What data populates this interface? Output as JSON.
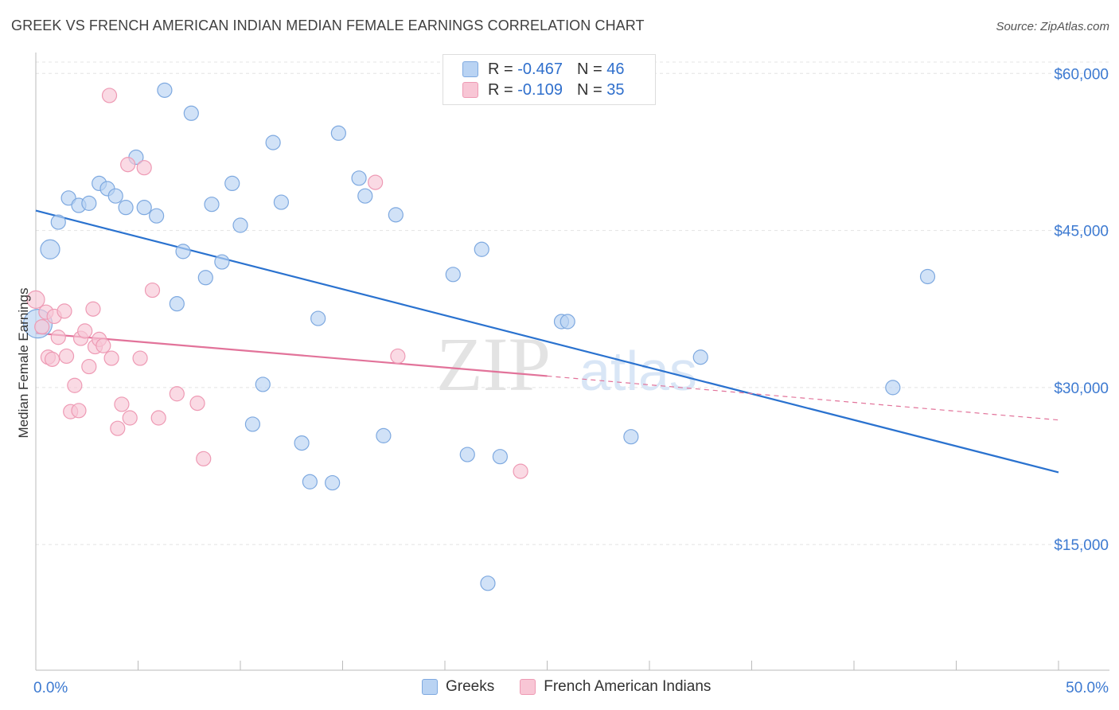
{
  "title": "GREEK VS FRENCH AMERICAN INDIAN MEDIAN FEMALE EARNINGS CORRELATION CHART",
  "source": "Source: ZipAtlas.com",
  "watermark": {
    "zip": "ZIP",
    "atlas": "atlas"
  },
  "legend_top": {
    "rows": [
      {
        "r_label": "R =",
        "r_value": "-0.467",
        "n_label": "N =",
        "n_value": "46"
      },
      {
        "r_label": "R =",
        "r_value": "-0.109",
        "n_label": "N =",
        "n_value": "35"
      }
    ]
  },
  "colors": {
    "greek_fill": "#b9d3f3",
    "greek_stroke": "#7ea9e0",
    "greek_line": "#2a72cf",
    "french_fill": "#f8c6d5",
    "french_stroke": "#ee9ab4",
    "french_line": "#e2739a",
    "axis_label": "#3d7ad1"
  },
  "chart_data": {
    "type": "scatter",
    "title": "GREEK VS FRENCH AMERICAN INDIAN MEDIAN FEMALE EARNINGS CORRELATION CHART",
    "xlabel": "",
    "ylabel": "Median Female Earnings",
    "xlim": [
      0,
      50
    ],
    "ylim": [
      3000,
      62000
    ],
    "x_tick_labels": [
      "0.0%",
      "50.0%"
    ],
    "y_ticks": [
      {
        "value": 60000,
        "label": "$60,000"
      },
      {
        "value": 45000,
        "label": "$45,000"
      },
      {
        "value": 30000,
        "label": "$30,000"
      },
      {
        "value": 15000,
        "label": "$15,000"
      }
    ],
    "legend": [
      "Greeks",
      "French American Indians"
    ],
    "series": [
      {
        "name": "Greeks",
        "r": -0.467,
        "n": 46,
        "trend": {
          "x0": 0,
          "y0": 46900,
          "x1": 50,
          "y1": 21900
        },
        "points": [
          [
            0.1,
            36100,
            18
          ],
          [
            0.7,
            43200,
            12
          ],
          [
            1.1,
            45800,
            9
          ],
          [
            1.6,
            48100,
            9
          ],
          [
            2.1,
            47400,
            9
          ],
          [
            2.6,
            47600,
            9
          ],
          [
            3.1,
            49500,
            9
          ],
          [
            3.5,
            49000,
            9
          ],
          [
            3.9,
            48300,
            9
          ],
          [
            4.4,
            47200,
            9
          ],
          [
            4.9,
            52000,
            9
          ],
          [
            5.3,
            47200,
            9
          ],
          [
            5.9,
            46400,
            9
          ],
          [
            6.3,
            58400,
            9
          ],
          [
            6.9,
            38000,
            9
          ],
          [
            7.2,
            43000,
            9
          ],
          [
            7.6,
            56200,
            9
          ],
          [
            8.3,
            40500,
            9
          ],
          [
            8.6,
            47500,
            9
          ],
          [
            9.1,
            42000,
            9
          ],
          [
            9.6,
            49500,
            9
          ],
          [
            10.0,
            45500,
            9
          ],
          [
            10.6,
            26500,
            9
          ],
          [
            11.1,
            30300,
            9
          ],
          [
            11.6,
            53400,
            9
          ],
          [
            12.0,
            47700,
            9
          ],
          [
            13.0,
            24700,
            9
          ],
          [
            13.4,
            21000,
            9
          ],
          [
            13.8,
            36600,
            9
          ],
          [
            14.5,
            20900,
            9
          ],
          [
            14.8,
            54300,
            9
          ],
          [
            15.8,
            50000,
            9
          ],
          [
            16.1,
            48300,
            9
          ],
          [
            17.0,
            25400,
            9
          ],
          [
            17.6,
            46500,
            9
          ],
          [
            20.4,
            40800,
            9
          ],
          [
            21.1,
            23600,
            9
          ],
          [
            21.8,
            43200,
            9
          ],
          [
            22.1,
            11300,
            9
          ],
          [
            22.7,
            23400,
            9
          ],
          [
            25.7,
            36300,
            9
          ],
          [
            26.0,
            36300,
            9
          ],
          [
            29.1,
            25300,
            9
          ],
          [
            32.5,
            32900,
            9
          ],
          [
            43.6,
            40600,
            9
          ],
          [
            41.9,
            30000,
            9
          ]
        ]
      },
      {
        "name": "French American Indians",
        "r": -0.109,
        "n": 35,
        "trend": {
          "x0": 0,
          "y0": 35200,
          "x1": 25,
          "y1": 31100,
          "x_dash_end": 50,
          "y_dash_end": 26900
        },
        "points": [
          [
            0.0,
            38400,
            11
          ],
          [
            0.5,
            37200,
            9
          ],
          [
            0.6,
            32900,
            9
          ],
          [
            0.9,
            36800,
            9
          ],
          [
            0.8,
            32700,
            9
          ],
          [
            1.1,
            34800,
            9
          ],
          [
            1.4,
            37300,
            9
          ],
          [
            1.5,
            33000,
            9
          ],
          [
            1.7,
            27700,
            9
          ],
          [
            1.9,
            30200,
            9
          ],
          [
            2.1,
            27800,
            9
          ],
          [
            2.2,
            34700,
            9
          ],
          [
            2.4,
            35400,
            9
          ],
          [
            2.6,
            32000,
            9
          ],
          [
            2.8,
            37500,
            9
          ],
          [
            2.9,
            33900,
            9
          ],
          [
            3.1,
            34600,
            9
          ],
          [
            3.3,
            34000,
            9
          ],
          [
            3.6,
            57900,
            9
          ],
          [
            3.7,
            32800,
            9
          ],
          [
            4.0,
            26100,
            9
          ],
          [
            4.2,
            28400,
            9
          ],
          [
            4.5,
            51300,
            9
          ],
          [
            4.6,
            27100,
            9
          ],
          [
            5.1,
            32800,
            9
          ],
          [
            5.3,
            51000,
            9
          ],
          [
            5.7,
            39300,
            9
          ],
          [
            6.0,
            27100,
            9
          ],
          [
            6.9,
            29400,
            9
          ],
          [
            7.9,
            28500,
            9
          ],
          [
            8.2,
            23200,
            9
          ],
          [
            16.6,
            49600,
            9
          ],
          [
            17.7,
            33000,
            9
          ],
          [
            23.7,
            22000,
            9
          ],
          [
            0.3,
            35800,
            9
          ]
        ]
      }
    ]
  }
}
